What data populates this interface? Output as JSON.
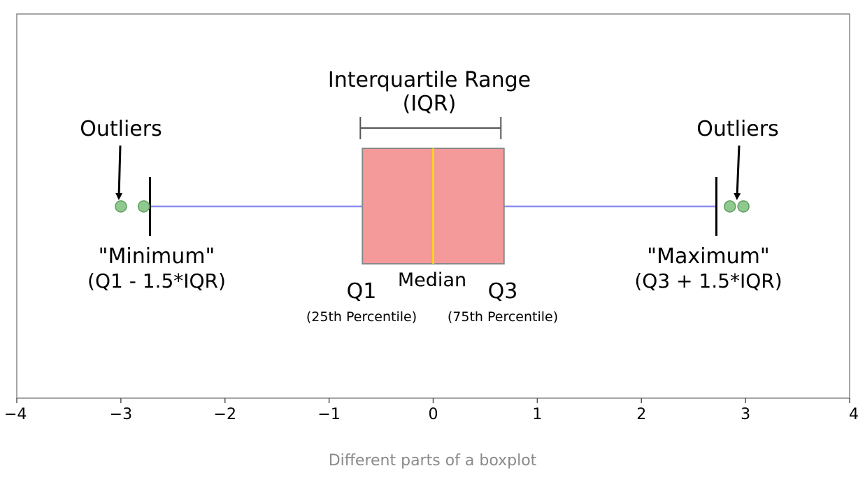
{
  "chart_data": {
    "type": "boxplot",
    "xlim": [
      -4,
      4
    ],
    "ticks": [
      -4,
      -3,
      -2,
      -1,
      0,
      1,
      2,
      3,
      4
    ],
    "tick_labels": [
      "−4",
      "−3",
      "−2",
      "−1",
      "0",
      "1",
      "2",
      "3",
      "4"
    ],
    "q1": -0.68,
    "median": 0,
    "q3": 0.68,
    "whisker_min": -2.72,
    "whisker_max": 2.72,
    "outliers": [
      -3.0,
      -2.78,
      2.85,
      2.98
    ],
    "iqr_bracket": [
      -0.7,
      0.65
    ],
    "colors": {
      "box_fill": "#f49a9a",
      "box_edge": "#888888",
      "median": "#ffe000",
      "whisker": "#8c8cf2",
      "outlier_fill": "#8fc98f",
      "outlier_edge": "#5f9e5f",
      "frame": "#888888"
    }
  },
  "labels": {
    "iqr_title_line1": "Interquartile Range",
    "iqr_title_line2": "(IQR)",
    "outliers_left": "Outliers",
    "outliers_right": "Outliers",
    "minimum": "\"Minimum\"",
    "minimum_formula": "(Q1 - 1.5*IQR)",
    "maximum": "\"Maximum\"",
    "maximum_formula": "(Q3 + 1.5*IQR)",
    "q1": "Q1",
    "q1_sub": "(25th Percentile)",
    "median": "Median",
    "q3": "Q3",
    "q3_sub": "(75th Percentile)"
  },
  "caption": "Different parts of a boxplot"
}
